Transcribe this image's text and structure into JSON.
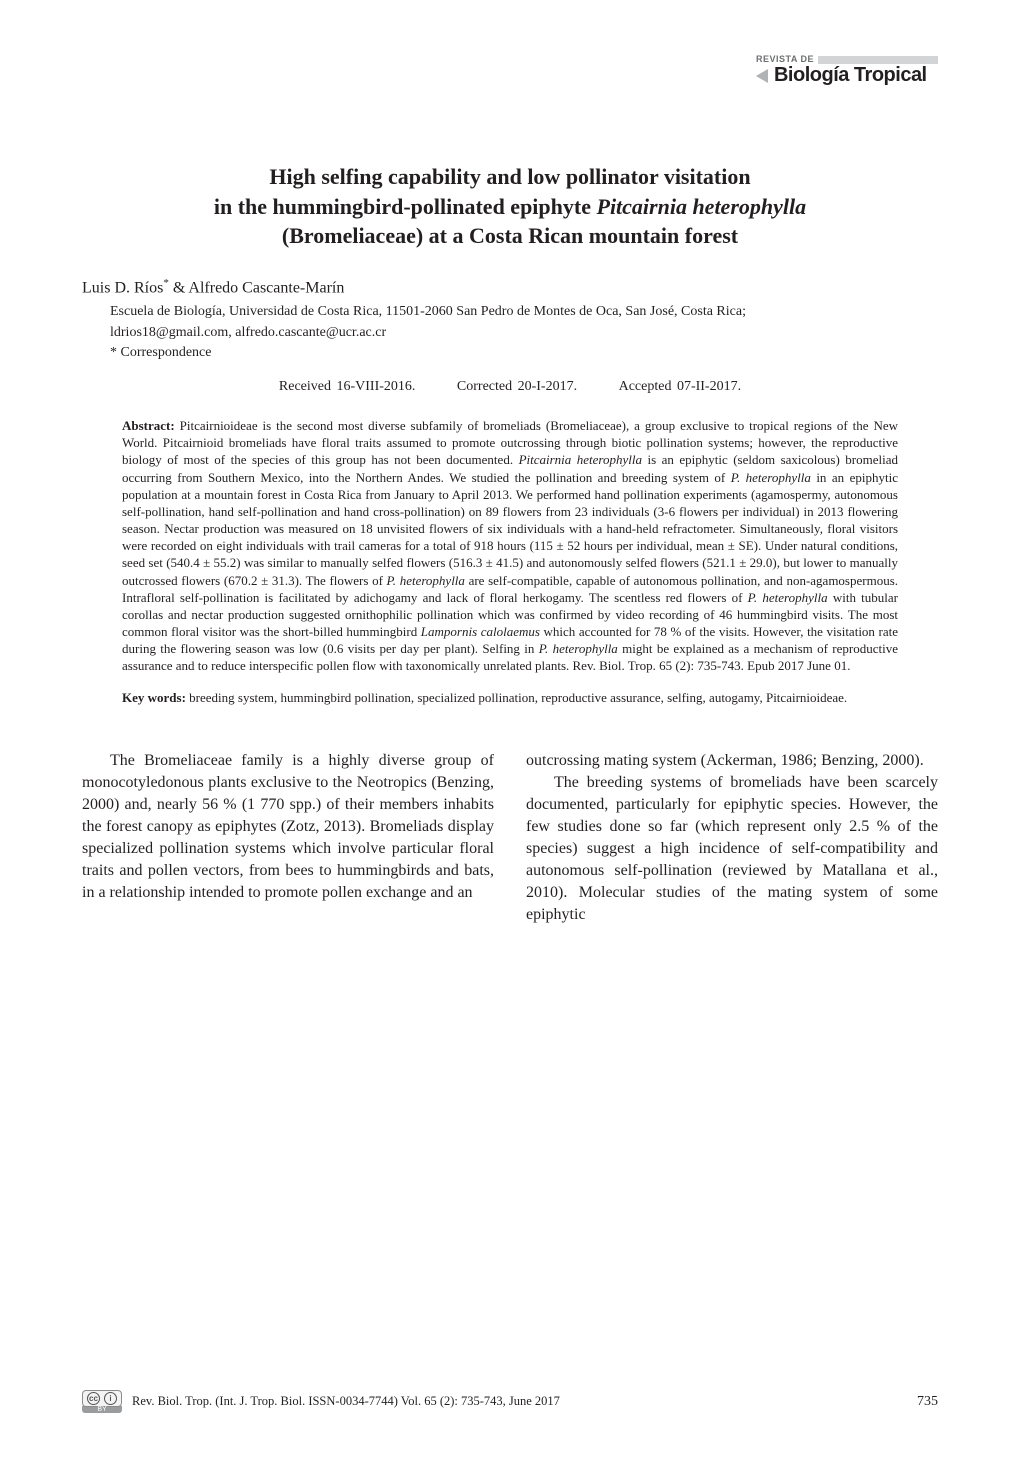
{
  "journal_tag": {
    "revista": "REVISTA DE",
    "name": "Biología Tropical"
  },
  "title": {
    "line1": "High selfing capability and low pollinator visitation",
    "line2_pre": "in the hummingbird-pollinated epiphyte ",
    "line2_em": "Pitcairnia heterophylla",
    "line3": "(Bromeliaceae) at a Costa Rican mountain forest"
  },
  "authors": {
    "a1": "Luis D. Ríos",
    "sup": "*",
    "sep": " & ",
    "a2": "Alfredo Cascante-Marín"
  },
  "affiliation": {
    "line1": "Escuela de Biología, Universidad de Costa Rica, 11501-2060 San Pedro de Montes de Oca, San José, Costa Rica;",
    "line2": "ldrios18@gmail.com, alfredo.cascante@ucr.ac.cr"
  },
  "correspondence": "* Correspondence",
  "dates": {
    "received": "Received 16-VIII-2016.",
    "corrected": "Corrected 20-I-2017.",
    "accepted": "Accepted 07-II-2017."
  },
  "abstract": {
    "label": "Abstract:",
    "text_parts": [
      " Pitcairnioideae is the second most diverse subfamily of bromeliads (Bromeliaceae), a group exclusive to tropical regions of the New World. Pitcairnioid bromeliads have floral traits assumed to promote outcrossing through biotic pollination systems; however, the reproductive biology of most of the species of this group has not been documented. ",
      "Pitcairnia heterophylla",
      " is an epiphytic (seldom saxicolous) bromeliad occurring from Southern Mexico, into the Northern Andes. We studied the pollination and breeding system of ",
      "P. heterophylla",
      " in an epiphytic population at a mountain forest in Costa Rica from January to April 2013. We performed hand pollination experiments (agamospermy, autonomous self-pollination, hand self-pollination and hand cross-pollination) on 89 flowers from 23 individuals (3-6 flowers per individual) in 2013 flowering season. Nectar production was measured on 18 unvisited flowers of six individuals with a hand-held refractometer. Simultaneously, floral visitors were recorded on eight individuals with trail cameras for a total of 918 hours (115 ± 52 hours per individual, mean ± SE). Under natural conditions, seed set (540.4 ± 55.2) was similar to manually selfed flowers (516.3 ± 41.5) and autonomously selfed flowers (521.1 ± 29.0), but lower to manually outcrossed flowers (670.2 ± 31.3). The flowers of ",
      "P. heterophylla",
      " are self-compatible, capable of autonomous pollination, and non-agamospermous. Intrafloral self-pollination is facilitated by adichogamy and lack of floral herkogamy. The scentless red flowers of ",
      "P. heterophylla",
      " with tubular corollas and nectar production suggested ornithophilic pollination which was confirmed by video recording of 46 hummingbird visits. The most common floral visitor was the short-billed hummingbird ",
      "Lampornis calolaemus",
      " which accounted for 78 % of the visits. However, the visitation rate during the flowering season was low (0.6 visits per day per plant). Selfing in ",
      "P. heterophylla",
      " might be explained as a mechanism of reproductive assurance and to reduce interspecific pollen flow with taxonomically unrelated plants. Rev. Biol. Trop. 65 (2): 735-743. Epub 2017 June 01."
    ]
  },
  "keywords": {
    "label": "Key words:",
    "text": " breeding system, hummingbird pollination, specialized pollination, reproductive assurance, selfing, autogamy, Pitcairnioideae."
  },
  "body": {
    "col1": "The Bromeliaceae family is a highly diverse group of monocotyledonous plants exclusive to the Neotropics (Benzing, 2000) and, nearly 56 % (1 770 spp.) of their members inhabits the forest canopy as epiphytes (Zotz, 2013). Bromeliads display specialized pollination systems which involve particular floral traits and pollen vectors, from bees to hummingbirds and bats, in a relationship intended to promote pollen exchange and an",
    "col2_p1": "outcrossing mating system (Ackerman, 1986; Benzing, 2000).",
    "col2_p2": "The breeding systems of bromeliads have been scarcely documented, particularly for epiphytic species. However, the few studies done so far (which represent only 2.5 % of the species) suggest a high incidence of self-compatibility and autonomous self-pollination (reviewed by Matallana et al., 2010). Molecular studies of the mating system of some epiphytic"
  },
  "footer": {
    "cc": "cc",
    "by": "BY",
    "citation": "Rev. Biol. Trop. (Int. J. Trop. Biol. ISSN-0034-7744) Vol. 65 (2): 735-743, June 2017",
    "page": "735"
  },
  "colors": {
    "text": "#231f20",
    "muted": "#6c6e70",
    "rule": "#d3d4d5",
    "tri": "#b0b2b4",
    "bg": "#ffffff"
  },
  "typography": {
    "title_pt": 22,
    "body_pt": 16,
    "abstract_pt": 13,
    "footer_pt": 12.5
  }
}
